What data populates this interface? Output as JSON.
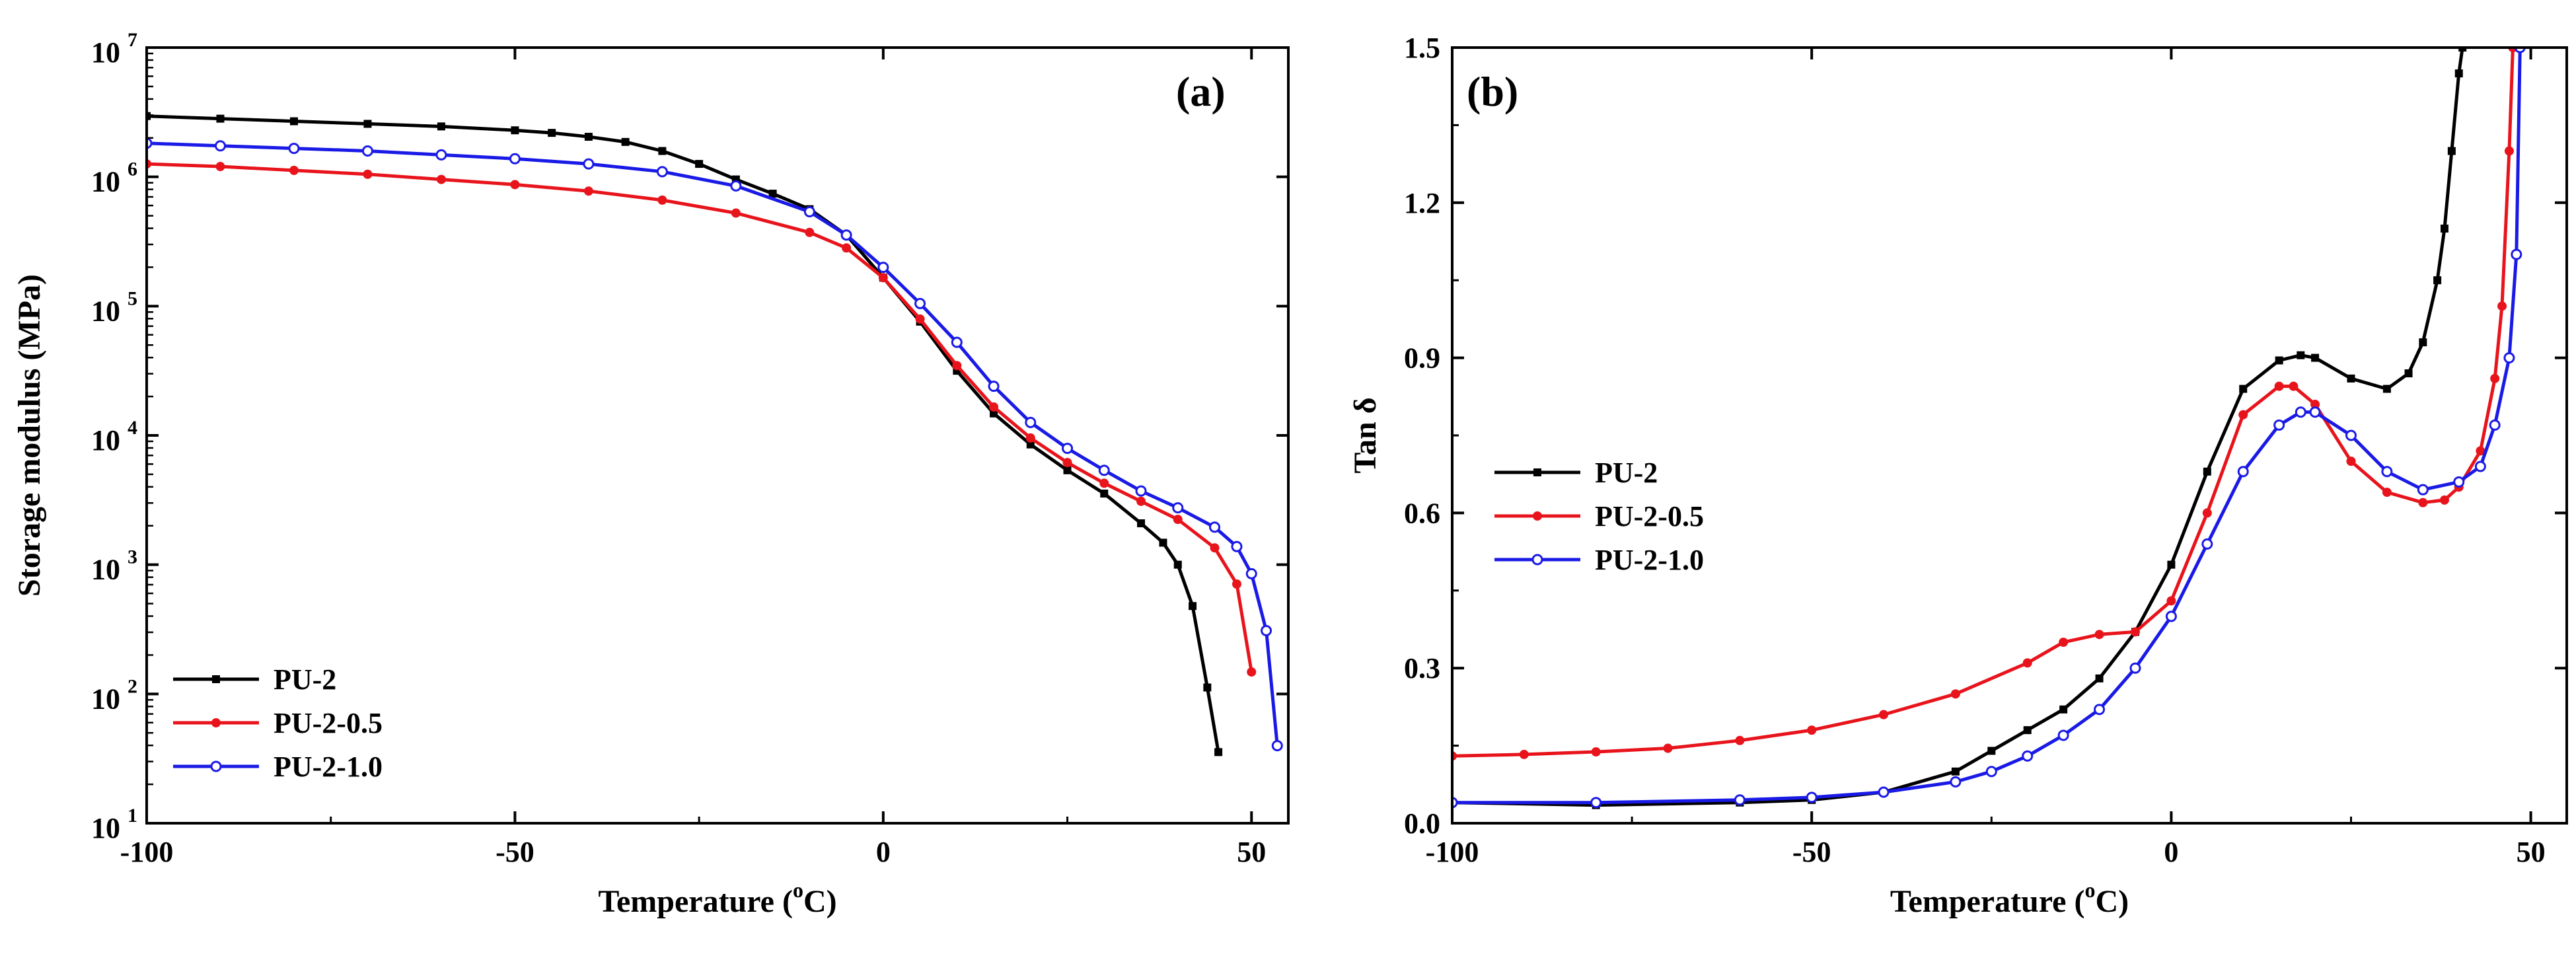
{
  "chart_data": [
    {
      "type": "line",
      "panel_label": "(a)",
      "xlabel": "Temperature (°C)",
      "xlabel_parts": {
        "main": "Temperature (",
        "sup": "o",
        "unit": "C)"
      },
      "ylabel": "Storage modulus (MPa)",
      "xlim": [
        -100,
        55
      ],
      "ylim_log10": [
        1,
        7
      ],
      "yscale": "log",
      "x_ticks": [
        -100,
        -50,
        0,
        50
      ],
      "x_tick_labels": [
        "-100",
        "-50",
        "0",
        "50"
      ],
      "y_ticks_log10": [
        1,
        2,
        3,
        4,
        5,
        6,
        7
      ],
      "y_tick_labels": [
        "10",
        "10",
        "10",
        "10",
        "10",
        "10",
        "10"
      ],
      "y_tick_exponents": [
        "1",
        "2",
        "3",
        "4",
        "5",
        "6",
        "7"
      ],
      "legend_position": "bottom-left",
      "series": [
        {
          "name": "PU-2",
          "color": "#000000",
          "marker": "square",
          "x": [
            -100,
            -90,
            -80,
            -70,
            -60,
            -50,
            -45,
            -40,
            -35,
            -30,
            -25,
            -20,
            -15,
            -10,
            -5,
            0,
            5,
            10,
            15,
            20,
            25,
            30,
            35,
            38,
            40,
            42,
            44,
            45.5
          ],
          "log10_y": [
            6.47,
            6.45,
            6.43,
            6.41,
            6.39,
            6.36,
            6.34,
            6.31,
            6.27,
            6.2,
            6.1,
            5.98,
            5.87,
            5.75,
            5.55,
            5.22,
            4.88,
            4.5,
            4.17,
            3.93,
            3.73,
            3.55,
            3.32,
            3.17,
            3.0,
            2.68,
            2.05,
            1.55
          ]
        },
        {
          "name": "PU-2-0.5",
          "color": "#e8141c",
          "marker": "circle",
          "x": [
            -100,
            -90,
            -80,
            -70,
            -60,
            -50,
            -40,
            -30,
            -20,
            -10,
            -5,
            0,
            5,
            10,
            15,
            20,
            25,
            30,
            35,
            40,
            45,
            48,
            50
          ],
          "log10_y": [
            6.1,
            6.08,
            6.05,
            6.02,
            5.98,
            5.94,
            5.89,
            5.82,
            5.72,
            5.57,
            5.45,
            5.22,
            4.9,
            4.54,
            4.22,
            3.98,
            3.79,
            3.63,
            3.49,
            3.35,
            3.13,
            2.85,
            2.17
          ]
        },
        {
          "name": "PU-2-1.0",
          "color": "#1a1ae6",
          "marker": "open-circle",
          "x": [
            -100,
            -90,
            -80,
            -70,
            -60,
            -50,
            -40,
            -30,
            -20,
            -10,
            -5,
            0,
            5,
            10,
            15,
            20,
            25,
            30,
            35,
            40,
            45,
            48,
            50,
            52,
            53.5
          ],
          "log10_y": [
            6.26,
            6.24,
            6.22,
            6.2,
            6.17,
            6.14,
            6.1,
            6.04,
            5.93,
            5.73,
            5.55,
            5.3,
            5.02,
            4.72,
            4.38,
            4.1,
            3.9,
            3.73,
            3.57,
            3.44,
            3.29,
            3.14,
            2.93,
            2.49,
            1.6
          ]
        }
      ]
    },
    {
      "type": "line",
      "panel_label": "(b)",
      "xlabel": "Temperature (°C)",
      "xlabel_parts": {
        "main": "Temperature (",
        "sup": "o",
        "unit": "C)"
      },
      "ylabel": "Tan δ",
      "xlim": [
        -100,
        55
      ],
      "ylim": [
        0,
        1.5
      ],
      "x_ticks": [
        -100,
        -50,
        0,
        50
      ],
      "x_tick_labels": [
        "-100",
        "-50",
        "0",
        "50"
      ],
      "y_ticks": [
        0,
        0.3,
        0.6,
        0.9,
        1.2,
        1.5
      ],
      "y_tick_labels": [
        "0.0",
        "0.3",
        "0.6",
        "0.9",
        "1.2",
        "1.5"
      ],
      "legend_position": "middle-left",
      "series": [
        {
          "name": "PU-2",
          "color": "#000000",
          "marker": "square",
          "x": [
            -100,
            -80,
            -60,
            -50,
            -40,
            -30,
            -25,
            -20,
            -15,
            -10,
            -5,
            0,
            5,
            10,
            15,
            18,
            20,
            25,
            30,
            33,
            35,
            37,
            38,
            39,
            40,
            40.5
          ],
          "y": [
            0.04,
            0.035,
            0.04,
            0.045,
            0.06,
            0.1,
            0.14,
            0.18,
            0.22,
            0.28,
            0.37,
            0.5,
            0.68,
            0.84,
            0.895,
            0.905,
            0.9,
            0.86,
            0.84,
            0.87,
            0.93,
            1.05,
            1.15,
            1.3,
            1.45,
            1.5
          ]
        },
        {
          "name": "PU-2-0.5",
          "color": "#e8141c",
          "marker": "circle",
          "x": [
            -100,
            -90,
            -80,
            -70,
            -60,
            -50,
            -40,
            -30,
            -20,
            -15,
            -10,
            -5,
            0,
            5,
            10,
            15,
            17,
            20,
            25,
            30,
            35,
            38,
            40,
            43,
            45,
            46,
            47,
            47.5
          ],
          "y": [
            0.13,
            0.133,
            0.138,
            0.145,
            0.16,
            0.18,
            0.21,
            0.25,
            0.31,
            0.35,
            0.365,
            0.37,
            0.43,
            0.6,
            0.79,
            0.845,
            0.845,
            0.81,
            0.7,
            0.64,
            0.62,
            0.625,
            0.65,
            0.72,
            0.86,
            1.0,
            1.3,
            1.5
          ]
        },
        {
          "name": "PU-2-1.0",
          "color": "#1a1ae6",
          "marker": "open-circle",
          "x": [
            -100,
            -80,
            -60,
            -50,
            -40,
            -30,
            -25,
            -20,
            -15,
            -10,
            -5,
            0,
            5,
            10,
            15,
            18,
            20,
            25,
            30,
            35,
            40,
            43,
            45,
            47,
            48,
            48.5
          ],
          "y": [
            0.04,
            0.04,
            0.045,
            0.05,
            0.06,
            0.08,
            0.1,
            0.13,
            0.17,
            0.22,
            0.3,
            0.4,
            0.54,
            0.68,
            0.77,
            0.795,
            0.795,
            0.75,
            0.68,
            0.645,
            0.66,
            0.69,
            0.77,
            0.9,
            1.1,
            1.5
          ]
        }
      ]
    }
  ]
}
